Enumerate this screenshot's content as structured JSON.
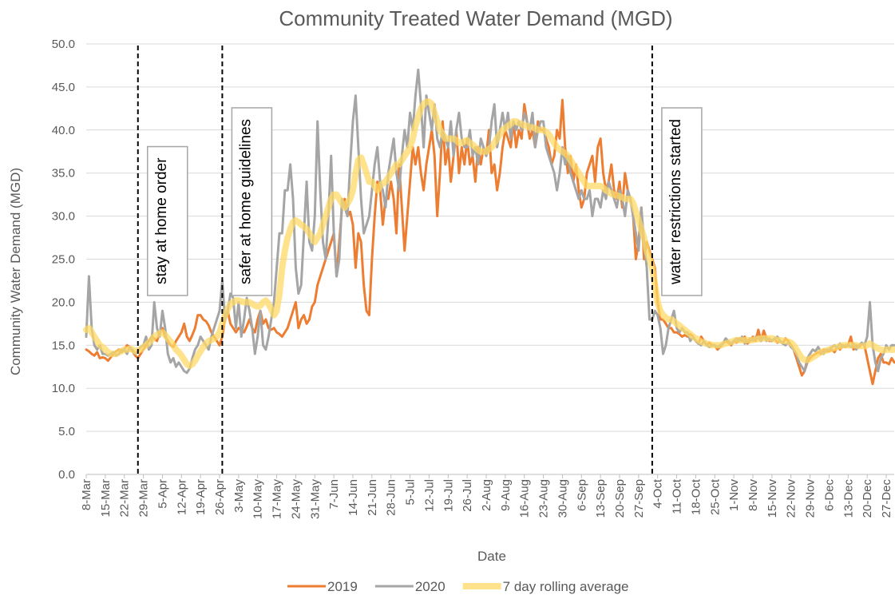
{
  "chart_data": {
    "type": "line",
    "title": "Community Treated Water Demand (MGD)",
    "x_label": "Date",
    "y_label": "Community Water Demand (MGD)",
    "categories": [
      "8-Mar",
      null,
      null,
      null,
      null,
      null,
      null,
      "15-Mar",
      null,
      null,
      null,
      null,
      null,
      null,
      "22-Mar",
      null,
      null,
      null,
      null,
      null,
      null,
      "29-Mar",
      null,
      null,
      null,
      null,
      null,
      null,
      "5-Apr",
      null,
      null,
      null,
      null,
      null,
      null,
      "12-Apr",
      null,
      null,
      null,
      null,
      null,
      null,
      "19-Apr",
      null,
      null,
      null,
      null,
      null,
      null,
      "26-Apr",
      null,
      null,
      null,
      null,
      null,
      null,
      "3-May",
      null,
      null,
      null,
      null,
      null,
      null,
      "10-May",
      null,
      null,
      null,
      null,
      null,
      null,
      "17-May",
      null,
      null,
      null,
      null,
      null,
      null,
      "24-May",
      null,
      null,
      null,
      null,
      null,
      null,
      "31-May",
      null,
      null,
      null,
      null,
      null,
      null,
      "7-Jun",
      null,
      null,
      null,
      null,
      null,
      null,
      "14-Jun",
      null,
      null,
      null,
      null,
      null,
      null,
      "21-Jun",
      null,
      null,
      null,
      null,
      null,
      null,
      "28-Jun",
      null,
      null,
      null,
      null,
      null,
      null,
      "5-Jul",
      null,
      null,
      null,
      null,
      null,
      null,
      "12-Jul",
      null,
      null,
      null,
      null,
      null,
      null,
      "19-Jul",
      null,
      null,
      null,
      null,
      null,
      null,
      "26-Jul",
      null,
      null,
      null,
      null,
      null,
      null,
      "2-Aug",
      null,
      null,
      null,
      null,
      null,
      null,
      "9-Aug",
      null,
      null,
      null,
      null,
      null,
      null,
      "16-Aug",
      null,
      null,
      null,
      null,
      null,
      null,
      "23-Aug",
      null,
      null,
      null,
      null,
      null,
      null,
      "30-Aug",
      null,
      null,
      null,
      null,
      null,
      null,
      "6-Sep",
      null,
      null,
      null,
      null,
      null,
      null,
      "13-Sep",
      null,
      null,
      null,
      null,
      null,
      null,
      "20-Sep",
      null,
      null,
      null,
      null,
      null,
      null,
      "27-Sep",
      null,
      null,
      null,
      null,
      null,
      null,
      "4-Oct",
      null,
      null,
      null,
      null,
      null,
      null,
      "11-Oct",
      null,
      null,
      null,
      null,
      null,
      null,
      "18-Oct",
      null,
      null,
      null,
      null,
      null,
      null,
      "25-Oct",
      null,
      null,
      null,
      null,
      null,
      null,
      "1-Nov",
      null,
      null,
      null,
      null,
      null,
      null,
      "8-Nov",
      null,
      null,
      null,
      null,
      null,
      null,
      "15-Nov",
      null,
      null,
      null,
      null,
      null,
      null,
      "22-Nov",
      null,
      null,
      null,
      null,
      null,
      null,
      "29-Nov",
      null,
      null,
      null,
      null,
      null,
      null,
      "6-Dec",
      null,
      null,
      null,
      null,
      null,
      null,
      "13-Dec",
      null,
      null,
      null,
      null,
      null,
      null,
      "20-Dec",
      null,
      null,
      null,
      null,
      null,
      null,
      "27-Dec",
      null,
      null,
      null
    ],
    "series": [
      {
        "name": "2019",
        "color": "#ed7d31",
        "width": 3,
        "values": [
          14.5,
          14.3,
          14,
          13.8,
          14.2,
          13.5,
          13.6,
          13.5,
          13.2,
          13.6,
          14,
          14.3,
          14.5,
          14.2,
          14.5,
          15,
          14.8,
          14.3,
          13.8,
          13.5,
          14,
          14.5,
          15,
          15.5,
          16,
          15.8,
          15.5,
          16.5,
          17,
          16,
          15.5,
          15,
          14.8,
          15.5,
          16,
          16.5,
          17.5,
          16,
          15.5,
          16.2,
          17,
          18.5,
          18.5,
          18,
          17.8,
          17.3,
          16.5,
          16,
          15.5,
          15,
          16,
          18,
          19,
          17.5,
          17,
          16.5,
          17,
          16.8,
          16.5,
          17.2,
          18,
          17,
          16.5,
          18,
          19,
          17.5,
          18,
          17,
          16.8,
          17,
          16.5,
          16.3,
          16,
          16.5,
          17,
          18,
          19,
          20,
          17,
          18,
          18.5,
          17.5,
          18,
          19.5,
          20,
          22,
          23,
          24,
          25,
          26,
          27,
          28,
          23,
          27,
          31,
          32,
          30,
          30.5,
          29,
          24,
          28,
          27,
          22,
          19,
          18.5,
          25,
          30,
          34,
          33,
          29,
          32,
          32,
          34,
          32,
          28,
          36,
          31,
          26,
          30,
          34,
          38,
          36,
          38,
          35,
          33,
          36,
          38,
          40,
          37,
          30,
          35,
          41,
          36,
          38,
          34,
          37,
          40,
          35,
          38,
          36,
          39,
          36,
          37,
          34,
          38,
          36,
          38,
          37,
          40,
          35,
          36,
          33,
          35,
          38,
          40,
          39,
          38,
          41,
          38,
          40,
          39,
          43,
          41,
          39,
          40,
          38,
          41,
          40,
          40,
          39,
          38,
          36,
          37,
          40,
          39,
          43.5,
          38,
          35,
          37,
          34,
          36,
          33,
          31,
          32,
          35,
          36,
          37,
          34,
          38,
          39,
          35,
          33,
          34,
          36,
          33,
          32,
          34,
          31,
          35,
          33,
          32,
          30,
          25,
          27,
          31,
          25,
          27,
          26,
          25,
          24,
          20,
          18,
          18,
          17.5,
          17,
          17,
          16.5,
          16.5,
          16.3,
          16,
          16.2,
          16,
          16.3,
          16,
          15.5,
          15.2,
          16,
          15.5,
          15,
          15.3,
          15,
          15,
          14.5,
          14.8,
          15.2,
          15.5,
          15.3,
          15,
          15.5,
          15.3,
          15.8,
          15.5,
          16,
          15.2,
          15.5,
          16,
          15.5,
          16.8,
          15.5,
          16.7,
          15.8,
          15.5,
          15.5,
          15.8,
          15.3,
          15.5,
          15.2,
          15.8,
          15.5,
          15,
          14.5,
          13.5,
          12.5,
          11.5,
          12,
          13,
          13.5,
          13.8,
          14,
          14.2,
          14,
          14.5,
          14.3,
          14.3,
          14.5,
          14.2,
          14.8,
          14.5,
          15,
          14.8,
          15,
          16,
          14.5,
          15,
          14.8,
          15.2,
          15,
          13.5,
          12,
          10.5,
          12,
          13.5,
          14,
          13,
          13,
          12.8,
          13.5,
          13
        ]
      },
      {
        "name": "2020",
        "color": "#a5a5a5",
        "width": 3,
        "values": [
          16,
          23,
          17,
          15,
          14.5,
          15,
          14,
          14,
          13.8,
          14,
          14.2,
          13.8,
          14,
          14.5,
          14.5,
          14,
          14.8,
          14.5,
          14,
          14.3,
          14.8,
          15,
          16,
          14.5,
          15,
          20,
          17,
          16,
          19,
          17,
          14,
          13,
          13.5,
          12.5,
          13,
          12.5,
          12,
          11.8,
          12.3,
          13.5,
          14.5,
          15,
          16,
          15.5,
          15,
          14.5,
          16,
          17,
          18,
          19,
          22.5,
          18,
          19,
          21,
          20.5,
          17,
          20,
          16,
          18,
          20.5,
          19,
          17,
          14,
          16,
          19,
          15,
          14.5,
          16,
          18,
          20,
          24,
          28,
          28,
          33,
          33,
          36,
          32,
          24,
          21,
          22,
          28,
          34,
          27,
          26,
          30,
          41,
          33,
          27,
          25,
          30,
          37,
          28,
          23,
          25,
          32,
          31,
          30,
          36,
          41,
          44,
          38,
          32,
          28,
          29,
          30,
          33,
          36,
          38,
          34,
          33,
          31,
          35,
          37,
          39,
          35,
          33,
          37,
          40,
          38,
          42,
          40,
          44,
          47,
          43,
          38,
          44,
          42,
          40,
          43,
          39,
          38,
          40,
          39,
          38,
          41,
          37,
          40,
          42,
          39,
          38,
          38,
          40,
          37,
          38,
          36,
          39,
          38,
          37,
          38,
          41,
          43,
          38,
          40,
          42,
          40,
          42,
          39,
          41,
          40,
          41,
          40,
          42,
          41,
          40,
          42,
          38,
          40,
          41,
          41,
          38,
          37,
          36,
          35,
          33,
          35,
          38,
          36,
          37,
          35,
          34,
          33,
          32,
          33,
          32,
          32,
          33,
          30,
          32,
          32,
          31,
          33,
          32,
          34,
          33,
          32,
          31,
          33,
          32,
          30,
          33,
          32,
          30,
          28,
          26,
          31,
          27,
          24,
          18,
          18,
          19,
          18.5,
          17,
          14,
          15,
          17,
          18,
          19,
          17,
          16.5,
          17,
          16.5,
          16.5,
          15.5,
          16,
          15.5,
          15.2,
          15,
          15.5,
          15,
          14.8,
          15,
          15,
          14.8,
          15,
          15.2,
          15.8,
          15.5,
          15.2,
          15.5,
          15.8,
          15.5,
          16,
          15.2,
          15.5,
          15.8,
          15.5,
          16,
          15.8,
          15.5,
          16,
          15.5,
          15.8,
          15.5,
          15.8,
          16,
          15.5,
          15.2,
          15,
          15.3,
          14.8,
          14.5,
          14,
          13,
          12.5,
          12,
          13.5,
          14,
          14.5,
          14.3,
          14.8,
          14.2,
          14,
          14.5,
          14.5,
          14.8,
          15,
          14.7,
          15.2,
          14.8,
          15,
          15,
          14.8,
          15.2,
          14.5,
          15,
          15.3,
          15,
          16,
          20,
          15,
          13,
          12,
          13.5,
          14,
          15,
          14.5,
          15,
          15
        ]
      },
      {
        "name": "7 day rolling average",
        "color": "#ffd966",
        "width": 8,
        "opacity": 0.75,
        "values": [
          16.8,
          17,
          16.5,
          16,
          15.5,
          15,
          14.8,
          14.5,
          14.2,
          14,
          14,
          14,
          14.2,
          14.3,
          14.5,
          14.5,
          14.6,
          14.5,
          14.3,
          14.4,
          14.5,
          14.8,
          15,
          15.3,
          15.6,
          16,
          16.2,
          16.4,
          16.5,
          16.2,
          15.8,
          15.4,
          15,
          14.5,
          14.2,
          13.8,
          13.3,
          12.8,
          12.6,
          12.8,
          13.2,
          13.8,
          14.3,
          14.8,
          15.2,
          15.5,
          15.6,
          15.8,
          16,
          16.5,
          17.5,
          18.5,
          19.2,
          19.8,
          20,
          20.2,
          20.2,
          20.1,
          20,
          20,
          20,
          19.8,
          19.6,
          19.5,
          19.6,
          20,
          20.2,
          19.8,
          19.2,
          18.5,
          19,
          21,
          24,
          26,
          27.5,
          28.5,
          29.3,
          29.5,
          29.3,
          29,
          28.8,
          28.5,
          28,
          27.5,
          27,
          27.5,
          28,
          29,
          30,
          31,
          32,
          32.5,
          32.5,
          32,
          31.5,
          31,
          31.5,
          32,
          33,
          35,
          36.5,
          36.8,
          36,
          35,
          34,
          34,
          33.5,
          33,
          33.5,
          33.8,
          34,
          34.5,
          35,
          35.5,
          36,
          36,
          36.5,
          37,
          37.5,
          38,
          39,
          40.5,
          41.5,
          42.5,
          43,
          43.3,
          43.3,
          43,
          42,
          41,
          40,
          39.5,
          39,
          39,
          39,
          39,
          38.8,
          38.5,
          38.5,
          38.7,
          38.8,
          38.5,
          38.3,
          38,
          37.7,
          37.5,
          37.5,
          37.5,
          37.8,
          38,
          38.5,
          39,
          39.5,
          40,
          40.2,
          40.5,
          40.7,
          41,
          41,
          40.8,
          40.7,
          40.5,
          40.5,
          40.3,
          40.3,
          40.2,
          40,
          40,
          40,
          39.8,
          39.5,
          39,
          38.5,
          38,
          37.7,
          37.5,
          37.3,
          37,
          36.5,
          36,
          35.5,
          35,
          34.5,
          34,
          33.5,
          33.5,
          33.5,
          33.5,
          33.5,
          33.5,
          33.3,
          33,
          32.8,
          32.6,
          32.5,
          32.4,
          32.3,
          32.2,
          32,
          32,
          32,
          31.5,
          30.5,
          29.5,
          28.5,
          27.5,
          26,
          25,
          24,
          22,
          20,
          19,
          18.5,
          18.2,
          18,
          18,
          17.8,
          17.5,
          17.3,
          17,
          16.8,
          16.5,
          16.3,
          16,
          15.8,
          15.6,
          15.4,
          15.3,
          15.2,
          15.1,
          15,
          15,
          15,
          15,
          15.1,
          15.2,
          15.3,
          15.4,
          15.5,
          15.6,
          15.6,
          15.6,
          15.6,
          15.6,
          15.6,
          15.6,
          15.7,
          15.7,
          15.8,
          15.8,
          15.8,
          15.8,
          15.8,
          15.7,
          15.6,
          15.6,
          15.5,
          15.5,
          15.4,
          15.3,
          15,
          14.5,
          14,
          13.5,
          13.3,
          13.3,
          13.4,
          13.6,
          13.8,
          14,
          14.2,
          14.3,
          14.4,
          14.5,
          14.6,
          14.7,
          14.8,
          14.9,
          15,
          15,
          15,
          15,
          15,
          15,
          14.9,
          14.9,
          14.9,
          15,
          15.2,
          15,
          14.8,
          14.6,
          14.5,
          14.4,
          14.5,
          14.5,
          14.5,
          14.5
        ]
      }
    ],
    "ylim": [
      0,
      50
    ],
    "yticks": [
      {
        "value": 0,
        "label": "0.0"
      },
      {
        "value": 5,
        "label": "5.0"
      },
      {
        "value": 10,
        "label": "10.0"
      },
      {
        "value": 15,
        "label": "15.0"
      },
      {
        "value": 20,
        "label": "20.0"
      },
      {
        "value": 25,
        "label": "25.0"
      },
      {
        "value": 30,
        "label": "30.0"
      },
      {
        "value": 35,
        "label": "35.0"
      },
      {
        "value": 40,
        "label": "40.0"
      },
      {
        "value": 45,
        "label": "45.0"
      },
      {
        "value": 50,
        "label": "50.0"
      }
    ],
    "grid": true,
    "legend": "bottom",
    "annotations": [
      {
        "text": "stay at home order",
        "x": 19
      },
      {
        "text": "safer at home guidelines",
        "x": 50
      },
      {
        "text": "water restrictions started",
        "x": 208
      }
    ]
  }
}
